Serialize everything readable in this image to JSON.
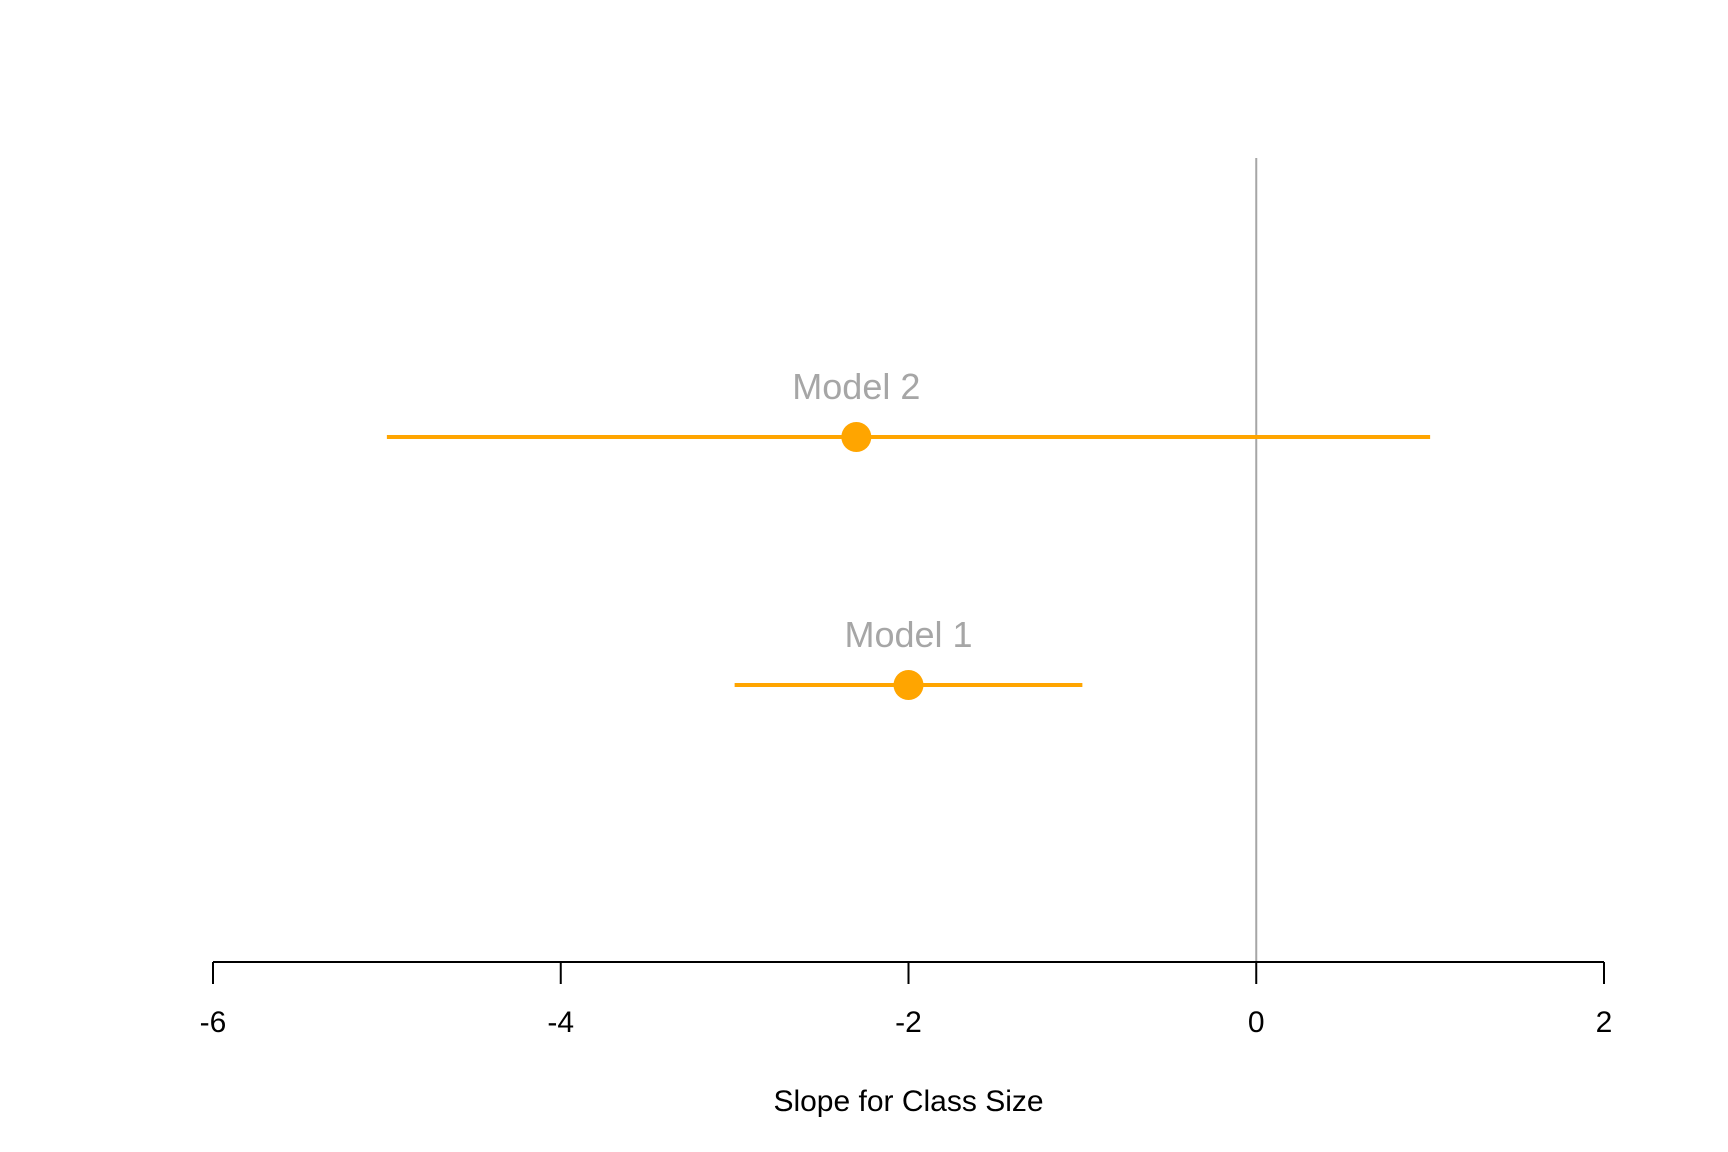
{
  "chart_data": {
    "type": "scatter",
    "title": "",
    "xlabel": "Slope for Class Size",
    "ylabel": "",
    "xlim": [
      -6,
      2
    ],
    "xticks": [
      -6,
      -4,
      -2,
      0,
      2
    ],
    "xtick_labels": [
      "-6",
      "-4",
      "-2",
      "0",
      "2"
    ],
    "reference_line_x": 0,
    "grid": false,
    "series": [
      {
        "name": "Model 2",
        "estimate": -2.3,
        "ci_low": -5.0,
        "ci_high": 1.0
      },
      {
        "name": "Model 1",
        "estimate": -2.0,
        "ci_low": -3.0,
        "ci_high": -1.0
      }
    ],
    "colors": {
      "point": "#FFA500",
      "interval": "#FFA500",
      "label": "#A6A6A6",
      "reference_line": "#A6A6A6",
      "axis": "#000000"
    }
  }
}
